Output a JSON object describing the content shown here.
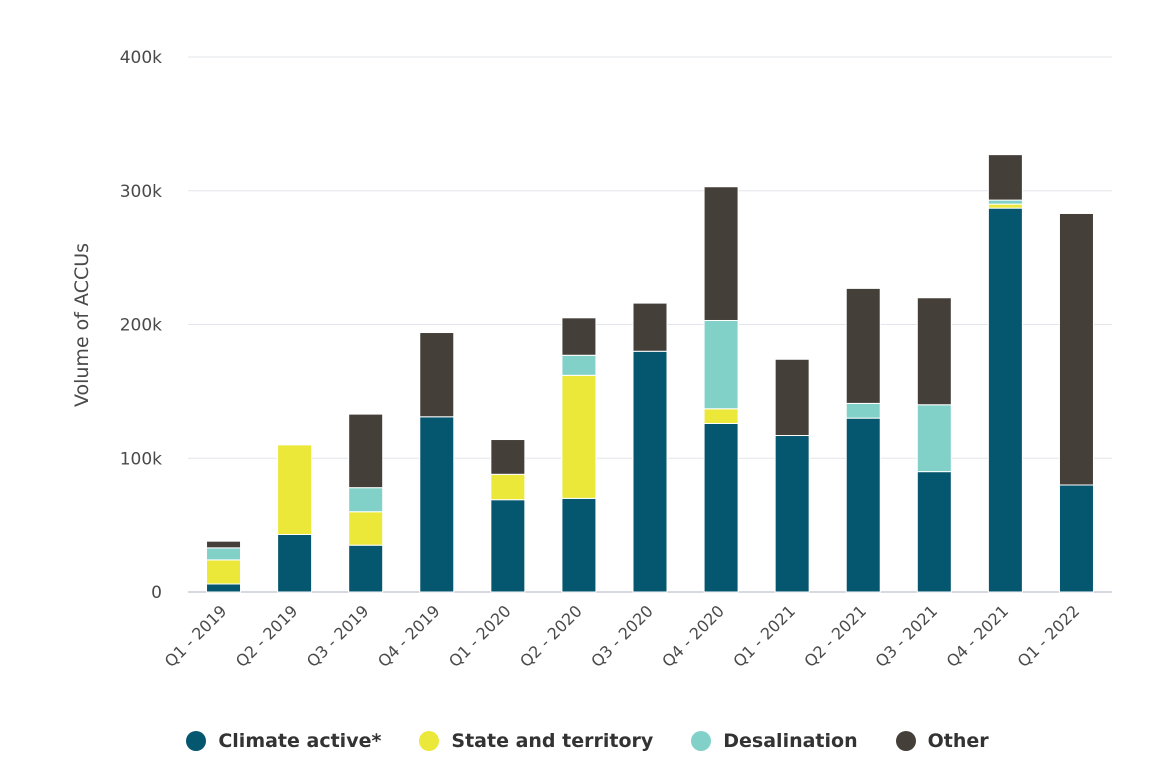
{
  "chart_data": {
    "type": "bar",
    "stacked": true,
    "title": "",
    "xlabel": "",
    "ylabel": "Volume of ACCUs",
    "ylim": [
      0,
      400000
    ],
    "yticks": [
      0,
      100000,
      200000,
      300000,
      400000
    ],
    "ytick_labels": [
      "0",
      "100k",
      "200k",
      "300k",
      "400k"
    ],
    "grid": true,
    "legend_position": "bottom",
    "categories": [
      "Q1 - 2019",
      "Q2 - 2019",
      "Q3 - 2019",
      "Q4 - 2019",
      "Q1 - 2020",
      "Q2 - 2020",
      "Q3 - 2020",
      "Q4 - 2020",
      "Q1 - 2021",
      "Q2 - 2021",
      "Q3 - 2021",
      "Q4 - 2021",
      "Q1 - 2022"
    ],
    "series": [
      {
        "name": "Climate active*",
        "color": "#05566f",
        "values": [
          6000,
          43000,
          35000,
          131000,
          69000,
          70000,
          180000,
          126000,
          117000,
          130000,
          90000,
          287000,
          80000
        ]
      },
      {
        "name": "State and territory",
        "color": "#ebe839",
        "values": [
          18000,
          67000,
          25000,
          0,
          19000,
          92000,
          0,
          11000,
          0,
          0,
          0,
          3000,
          0
        ]
      },
      {
        "name": "Desalination",
        "color": "#82d1c8",
        "values": [
          9000,
          0,
          18000,
          0,
          0,
          15000,
          0,
          66000,
          0,
          11000,
          50000,
          3000,
          0
        ]
      },
      {
        "name": "Other",
        "color": "#453f39",
        "values": [
          5000,
          0,
          55000,
          63000,
          26000,
          28000,
          36000,
          100000,
          57000,
          86000,
          80000,
          34000,
          203000
        ]
      }
    ]
  }
}
